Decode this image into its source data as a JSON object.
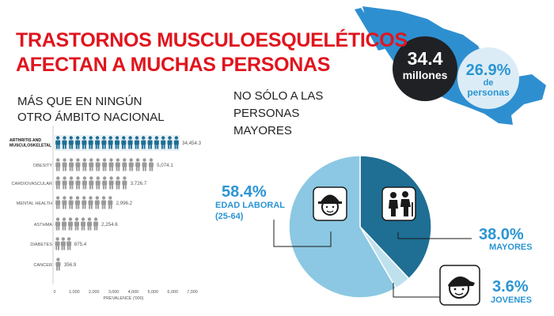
{
  "header": {
    "title_line1": "TRASTORNOS MUSCULOESQUELÉTICOS",
    "title_line2": "AFECTAN A MUCHAS PERSONAS"
  },
  "left_subtitle": {
    "line1": "MÁS QUE EN NINGÚN",
    "line2": "OTRO ÁMBITO NACIONAL"
  },
  "right_subtitle": {
    "line1": "NO SÓLO A LAS",
    "line2": "PERSONAS",
    "line3": "MAYORES"
  },
  "map_stats": {
    "dark_value": "34.4",
    "dark_label": "millones",
    "light_value": "26.9%",
    "light_label_1": "de",
    "light_label_2": "personas"
  },
  "colors": {
    "title_red": "#e0151e",
    "dark_navy": "#1f6e94",
    "mid_blue": "#2b95d3",
    "light_blue": "#8cc8e3",
    "pale_blue": "#bfe1ee",
    "figure_gray": "#9a9a9a",
    "map_blue": "#2e8fd0"
  },
  "icons": [
    "hard-hat-worker-icon",
    "elderly-couple-icon",
    "youth-cap-icon"
  ],
  "chart_data": [
    {
      "type": "bar",
      "categories": [
        "ARTHRITIS AND MUSCULOSKELETAL",
        "OBESITY",
        "CARDIOVASCULAR",
        "MENTAL HEALTH",
        "ASTHMA",
        "DIABETES",
        "CANCER"
      ],
      "values": [
        34454.3,
        5074.1,
        3726.7,
        2996.2,
        2254.6,
        875.4,
        356.9
      ],
      "value_labels": [
        "34,454.3",
        "5,074.1",
        "3,726.7",
        "2,996.2",
        "2,254.6",
        "875.4",
        "356.9"
      ],
      "xticks": [
        "0",
        "1,000",
        "2,000",
        "3,000",
        "4,000",
        "5,000",
        "6,000",
        "7,000"
      ],
      "xlabel": "PREVALENCE ('000)",
      "xlim": [
        0,
        7000
      ],
      "highlight_category": "ARTHRITIS AND MUSCULOSKELETAL"
    },
    {
      "type": "pie",
      "slices": [
        {
          "label": "EDAD LABORAL (25-64)",
          "label_line1": "EDAD LABORAL",
          "label_line2": "(25-64)",
          "percent_label": "58.4%",
          "value": 58.4,
          "color": "#8cc8e3",
          "icon": "hard-hat-worker-icon"
        },
        {
          "label": "MAYORES",
          "percent_label": "38.0%",
          "value": 38.0,
          "color": "#1f6e94",
          "icon": "elderly-couple-icon"
        },
        {
          "label": "JOVENES",
          "percent_label": "3.6%",
          "value": 3.6,
          "color": "#bfe1ee",
          "icon": "youth-cap-icon"
        }
      ]
    }
  ]
}
